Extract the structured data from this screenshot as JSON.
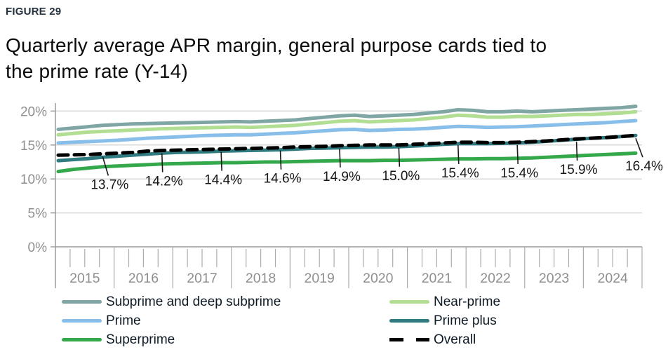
{
  "figure": {
    "label": "FIGURE 29"
  },
  "title": {
    "line1": "Quarterly average APR margin, general purpose cards tied to",
    "line2": "the prime rate (Y-14)"
  },
  "chart_data": {
    "type": "line",
    "x_unit": "quarter",
    "x_range": [
      "2015 Q1",
      "2024 Q4"
    ],
    "years": [
      "2015",
      "2016",
      "2017",
      "2018",
      "2019",
      "2020",
      "2021",
      "2022",
      "2023",
      "2024"
    ],
    "y_axis": {
      "tick_labels": [
        "0%",
        "5%",
        "10%",
        "15%",
        "20%"
      ],
      "tick_values": [
        0,
        5,
        10,
        15,
        20
      ],
      "ylim": [
        0,
        21.5
      ],
      "grid": true
    },
    "series": [
      {
        "name": "Subprime and deep subprime",
        "color": "#7FA5A5",
        "dashed": false,
        "values": [
          17.3,
          17.5,
          17.7,
          17.9,
          18.0,
          18.1,
          18.15,
          18.2,
          18.25,
          18.3,
          18.35,
          18.4,
          18.45,
          18.4,
          18.5,
          18.6,
          18.7,
          18.9,
          19.1,
          19.3,
          19.4,
          19.2,
          19.3,
          19.4,
          19.5,
          19.7,
          19.9,
          20.2,
          20.1,
          19.9,
          19.9,
          20.0,
          19.9,
          20.0,
          20.1,
          20.2,
          20.3,
          20.4,
          20.5,
          20.7
        ]
      },
      {
        "name": "Near-prime",
        "color": "#B2DE94",
        "dashed": false,
        "values": [
          16.5,
          16.7,
          16.9,
          17.0,
          17.1,
          17.2,
          17.3,
          17.4,
          17.45,
          17.5,
          17.55,
          17.6,
          17.65,
          17.6,
          17.7,
          17.8,
          17.9,
          18.1,
          18.3,
          18.5,
          18.6,
          18.4,
          18.5,
          18.6,
          18.7,
          18.9,
          19.1,
          19.4,
          19.3,
          19.1,
          19.1,
          19.2,
          19.2,
          19.3,
          19.4,
          19.5,
          19.5,
          19.6,
          19.7,
          19.9
        ]
      },
      {
        "name": "Prime",
        "color": "#88BEEA",
        "dashed": false,
        "values": [
          15.3,
          15.4,
          15.5,
          15.6,
          15.7,
          15.85,
          16.0,
          16.1,
          16.2,
          16.3,
          16.4,
          16.45,
          16.5,
          16.5,
          16.6,
          16.7,
          16.8,
          16.95,
          17.1,
          17.25,
          17.3,
          17.15,
          17.2,
          17.3,
          17.35,
          17.45,
          17.6,
          17.75,
          17.7,
          17.6,
          17.65,
          17.7,
          17.8,
          17.9,
          18.0,
          18.1,
          18.2,
          18.3,
          18.45,
          18.6
        ]
      },
      {
        "name": "Prime plus",
        "color": "#2F7B80",
        "dashed": false,
        "values": [
          12.7,
          12.85,
          13.0,
          13.2,
          13.35,
          13.5,
          13.65,
          13.8,
          13.9,
          13.95,
          14.0,
          14.1,
          14.15,
          14.2,
          14.25,
          14.3,
          14.4,
          14.5,
          14.55,
          14.6,
          14.65,
          14.7,
          14.7,
          14.75,
          14.85,
          14.95,
          15.1,
          15.2,
          15.2,
          15.2,
          15.25,
          15.3,
          15.4,
          15.55,
          15.7,
          15.85,
          16.0,
          16.1,
          16.25,
          16.4
        ]
      },
      {
        "name": "Superprime",
        "color": "#33A94C",
        "dashed": false,
        "values": [
          11.1,
          11.4,
          11.6,
          11.8,
          11.9,
          12.0,
          12.1,
          12.2,
          12.25,
          12.3,
          12.35,
          12.4,
          12.4,
          12.45,
          12.5,
          12.5,
          12.55,
          12.6,
          12.65,
          12.7,
          12.7,
          12.7,
          12.75,
          12.75,
          12.8,
          12.85,
          12.9,
          12.95,
          12.95,
          13.0,
          13.0,
          13.05,
          13.1,
          13.2,
          13.3,
          13.4,
          13.5,
          13.6,
          13.7,
          13.8
        ]
      },
      {
        "name": "Overall",
        "color": "#000000",
        "dashed": true,
        "values": [
          13.5,
          13.55,
          13.6,
          13.7,
          13.8,
          13.9,
          14.1,
          14.2,
          14.25,
          14.3,
          14.35,
          14.4,
          14.45,
          14.5,
          14.55,
          14.6,
          14.7,
          14.75,
          14.8,
          14.9,
          14.95,
          15.0,
          15.0,
          15.0,
          15.1,
          15.2,
          15.3,
          15.4,
          15.4,
          15.35,
          15.35,
          15.4,
          15.5,
          15.6,
          15.75,
          15.9,
          16.0,
          16.1,
          16.25,
          16.4
        ]
      }
    ],
    "annotations": [
      {
        "quarter": "2015 Q4",
        "value": 13.7,
        "label": "13.7%"
      },
      {
        "quarter": "2016 Q4",
        "value": 14.2,
        "label": "14.2%"
      },
      {
        "quarter": "2017 Q4",
        "value": 14.4,
        "label": "14.4%"
      },
      {
        "quarter": "2018 Q4",
        "value": 14.6,
        "label": "14.6%"
      },
      {
        "quarter": "2019 Q4",
        "value": 14.9,
        "label": "14.9%"
      },
      {
        "quarter": "2020 Q4",
        "value": 15.0,
        "label": "15.0%"
      },
      {
        "quarter": "2021 Q4",
        "value": 15.4,
        "label": "15.4%"
      },
      {
        "quarter": "2022 Q4",
        "value": 15.4,
        "label": "15.4%"
      },
      {
        "quarter": "2023 Q4",
        "value": 15.9,
        "label": "15.9%"
      },
      {
        "quarter": "2024 Q4",
        "value": 16.4,
        "label": "16.4%"
      }
    ],
    "legend_position": "bottom"
  },
  "legend": {
    "col1": [
      {
        "label": "Subprime and deep subprime",
        "series": 0
      },
      {
        "label": "Prime",
        "series": 2
      },
      {
        "label": "Superprime",
        "series": 4
      }
    ],
    "col2": [
      {
        "label": "Near-prime",
        "series": 1
      },
      {
        "label": "Prime plus",
        "series": 3
      },
      {
        "label": "Overall",
        "series": 5
      }
    ]
  },
  "colors": {
    "grid": "#D8D8D8",
    "axis": "#9B9B9B",
    "tick": "#ABABAB",
    "axis_text": "#8F8F8F",
    "annotation_text": "#161616",
    "leader_line": "#1A1A1A"
  }
}
